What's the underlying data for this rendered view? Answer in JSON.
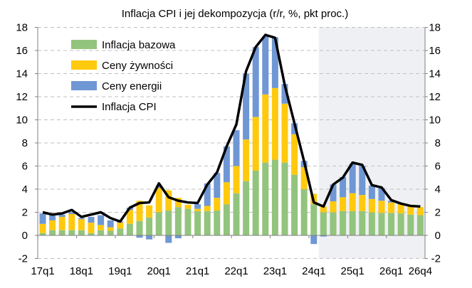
{
  "chart_data": {
    "type": "bar",
    "title": "Inflacja CPI i jej dekompozycja (r/r, %, pkt proc.)",
    "stacked": true,
    "ylim": [
      -2,
      18
    ],
    "yticks": [
      -2,
      0,
      2,
      4,
      6,
      8,
      10,
      12,
      14,
      16,
      18
    ],
    "grid": true,
    "legend_position": "top-left",
    "forecast_shaded_from": "24q2",
    "categories": [
      "17q1",
      "17q2",
      "17q3",
      "17q4",
      "18q1",
      "18q2",
      "18q3",
      "18q4",
      "19q1",
      "19q2",
      "19q3",
      "19q4",
      "20q1",
      "20q2",
      "20q3",
      "20q4",
      "21q1",
      "21q2",
      "21q3",
      "21q4",
      "22q1",
      "22q2",
      "22q3",
      "22q4",
      "23q1",
      "23q2",
      "23q3",
      "23q4",
      "24q1",
      "24q2",
      "24q3",
      "24q4",
      "25q1",
      "25q2",
      "25q3",
      "25q4",
      "26q1",
      "26q2",
      "26q3",
      "26q4"
    ],
    "xtick_labels": [
      "17q1",
      "18q1",
      "19q1",
      "20q1",
      "21q1",
      "22q1",
      "23q1",
      "24q1",
      "25q1",
      "26q1",
      "26q4"
    ],
    "series": [
      {
        "name": "Inflacja bazowa",
        "kind": "bar",
        "color": "#93C47D",
        "values": [
          0.2,
          0.45,
          0.45,
          0.45,
          0.45,
          0.2,
          0.45,
          0.4,
          0.6,
          1.0,
          1.25,
          1.55,
          2.0,
          2.15,
          2.45,
          2.3,
          2.1,
          2.1,
          2.15,
          2.7,
          3.65,
          4.7,
          5.6,
          6.3,
          6.55,
          6.3,
          5.25,
          4.0,
          2.7,
          2.0,
          2.0,
          2.1,
          2.1,
          2.1,
          2.0,
          1.95,
          1.95,
          1.9,
          1.8,
          1.75
        ]
      },
      {
        "name": "Ceny żywności",
        "kind": "bar",
        "color": "#FFC90E",
        "values": [
          0.8,
          0.85,
          1.15,
          1.4,
          0.95,
          0.9,
          0.45,
          0.3,
          0.5,
          1.2,
          1.75,
          1.05,
          2.1,
          1.75,
          0.8,
          0.35,
          0.2,
          0.45,
          1.1,
          1.9,
          2.35,
          3.6,
          4.65,
          5.9,
          6.2,
          5.1,
          3.5,
          1.9,
          0.9,
          0.5,
          0.95,
          1.2,
          1.55,
          1.4,
          1.15,
          1.05,
          0.9,
          0.8,
          0.75,
          0.7
        ]
      },
      {
        "name": "Ceny energii",
        "kind": "bar",
        "color": "#6F97D4",
        "values": [
          0.9,
          0.45,
          0.2,
          0.15,
          0.1,
          0.5,
          0.85,
          0.6,
          0.1,
          0.2,
          -0.2,
          -0.35,
          0.2,
          -0.65,
          -0.25,
          0,
          0.4,
          1.95,
          2.15,
          3.1,
          3.1,
          5.7,
          6.05,
          5.0,
          4.4,
          1.7,
          0.95,
          0.55,
          -0.75,
          -0.1,
          1.45,
          1.75,
          2.55,
          2.5,
          1.15,
          1.1,
          0.15,
          0.05,
          0,
          0
        ]
      },
      {
        "name": "Inflacja CPI",
        "kind": "line",
        "color": "#000000",
        "values": [
          2.0,
          1.8,
          1.9,
          2.2,
          1.6,
          1.8,
          2.0,
          1.5,
          1.2,
          2.4,
          2.8,
          2.85,
          4.5,
          3.3,
          3.0,
          2.85,
          2.8,
          4.4,
          5.45,
          7.7,
          9.6,
          14.2,
          16.3,
          17.35,
          17.1,
          13.0,
          9.7,
          6.4,
          2.85,
          2.5,
          4.4,
          5.0,
          6.3,
          6.1,
          4.35,
          4.15,
          3.05,
          2.75,
          2.55,
          2.5
        ]
      }
    ]
  }
}
